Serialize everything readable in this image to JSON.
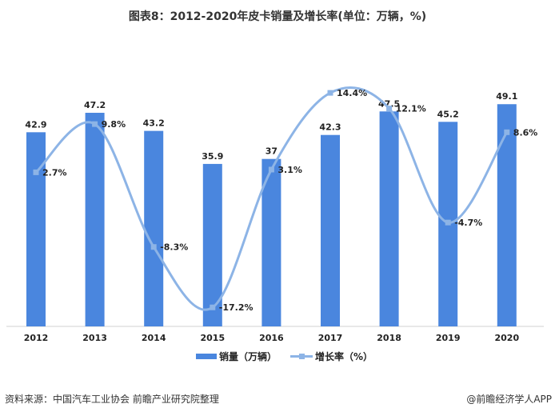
{
  "chart_data": {
    "type": "bar+line",
    "title": "图表8：2012-2020年皮卡销量及增长率(单位：万辆，%)",
    "categories": [
      "2012",
      "2013",
      "2014",
      "2015",
      "2016",
      "2017",
      "2018",
      "2019",
      "2020"
    ],
    "series": [
      {
        "name": "销量（万辆）",
        "type": "bar",
        "color": "#4a86de",
        "values": [
          42.9,
          47.2,
          43.2,
          35.9,
          37,
          42.3,
          47.5,
          45.2,
          49.1
        ],
        "labels": [
          "42.9",
          "47.2",
          "43.2",
          "35.9",
          "37",
          "42.3",
          "47.5",
          "45.2",
          "49.1"
        ]
      },
      {
        "name": "增长率（%）",
        "type": "line",
        "smooth": true,
        "color": "#8db4e6",
        "values": [
          2.7,
          9.8,
          -8.3,
          -17.2,
          3.1,
          14.4,
          12.1,
          -4.7,
          8.6
        ],
        "labels": [
          "2.7%",
          "9.8%",
          "-8.3%",
          "-17.2%",
          "3.1%",
          "14.4%",
          "12.1%",
          "-4.7%",
          "8.6%"
        ]
      }
    ],
    "ylim_bar": [
      0,
      52.5
    ],
    "ylim_line": [
      -20,
      15
    ],
    "grid": false,
    "legend_position": "bottom"
  },
  "footer": {
    "source": "资料来源：中国汽车工业协会 前瞻产业研究院整理",
    "credit": "@前瞻经济学人APP"
  }
}
